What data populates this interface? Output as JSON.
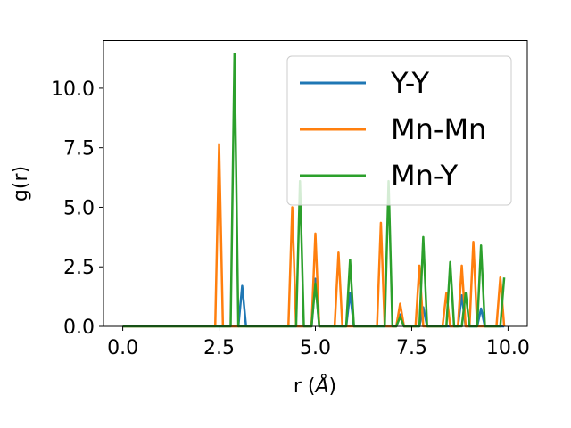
{
  "chart_data": {
    "type": "line",
    "xlabel_main": "r (",
    "xlabel_unit": "Å",
    "xlabel_end": ")",
    "ylabel": "g(r)",
    "xlim": [
      -0.5,
      10.5
    ],
    "ylim": [
      0,
      12
    ],
    "xticks": [
      0,
      2.5,
      5,
      7.5,
      10
    ],
    "xtick_labels": [
      "0.0",
      "2.5",
      "5.0",
      "7.5",
      "10.0"
    ],
    "yticks": [
      0,
      2.5,
      5,
      7.5,
      10
    ],
    "ytick_labels": [
      "0.0",
      "2.5",
      "5.0",
      "7.5",
      "10.0"
    ],
    "grid": false,
    "legend_position": "upper-right",
    "series": [
      {
        "name": "Y-Y",
        "color": "#1f77b4",
        "x": [
          0,
          3.0,
          3.1,
          3.2,
          4.9,
          5.0,
          5.1,
          5.8,
          5.9,
          6.0,
          7.1,
          7.2,
          7.3,
          7.7,
          7.8,
          7.9,
          8.7,
          8.8,
          8.9,
          9.2,
          9.3,
          9.4,
          9.9
        ],
        "y": [
          0,
          0,
          1.7,
          0,
          0,
          2.0,
          0,
          0,
          1.4,
          0,
          0,
          0.5,
          0,
          0,
          0.8,
          0,
          0,
          1.3,
          0,
          0,
          0.75,
          0,
          0
        ]
      },
      {
        "name": "Mn-Mn",
        "color": "#ff7f0e",
        "x": [
          0,
          2.4,
          2.5,
          2.6,
          4.3,
          4.4,
          4.5,
          4.9,
          5.0,
          5.1,
          5.5,
          5.6,
          5.7,
          6.6,
          6.7,
          6.8,
          7.1,
          7.2,
          7.3,
          7.6,
          7.7,
          7.8,
          8.3,
          8.4,
          8.5,
          8.7,
          8.8,
          8.9,
          9.0,
          9.1,
          9.2,
          9.7,
          9.8,
          9.9
        ],
        "y": [
          0,
          0,
          7.65,
          0,
          0,
          5.0,
          0,
          0,
          3.9,
          0,
          0,
          3.1,
          0,
          0,
          4.35,
          0,
          0,
          0.95,
          0,
          0,
          2.55,
          0,
          0,
          1.4,
          0,
          0,
          2.55,
          0,
          0,
          3.55,
          0,
          0,
          2.05,
          0
        ]
      },
      {
        "name": "Mn-Y",
        "color": "#2ca02c",
        "x": [
          0,
          2.8,
          2.9,
          3.0,
          4.5,
          4.6,
          4.7,
          4.9,
          5.0,
          5.1,
          5.8,
          5.9,
          6.0,
          6.8,
          6.9,
          7.0,
          7.1,
          7.2,
          7.3,
          7.7,
          7.8,
          7.9,
          8.4,
          8.5,
          8.6,
          8.8,
          8.9,
          9.0,
          9.2,
          9.3,
          9.4,
          9.8,
          9.9
        ],
        "y": [
          0,
          0,
          11.45,
          0,
          0,
          6.1,
          0,
          0,
          1.8,
          0,
          0,
          2.8,
          0,
          0,
          6.1,
          0,
          0,
          0.4,
          0,
          0,
          3.75,
          0,
          0,
          2.7,
          0,
          0,
          1.4,
          0,
          0,
          3.4,
          0,
          0,
          2.05
        ]
      }
    ]
  }
}
